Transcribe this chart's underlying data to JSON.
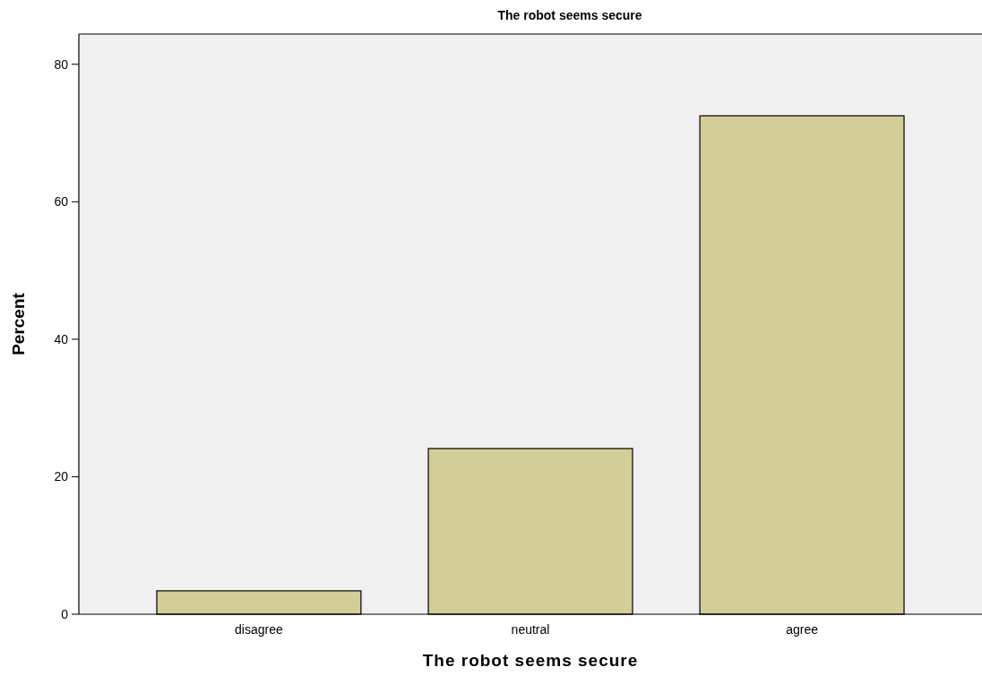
{
  "chart_data": {
    "type": "bar",
    "title": "The robot seems secure",
    "xlabel": "The robot seems secure",
    "ylabel": "Percent",
    "categories": [
      "disagree",
      "neutral",
      "agree"
    ],
    "values": [
      3.4,
      24.1,
      72.5
    ],
    "color": "#d3ce97",
    "ylim": [
      0,
      84.4
    ],
    "yticks": [
      0,
      20,
      40,
      60,
      80
    ],
    "grid": false
  }
}
